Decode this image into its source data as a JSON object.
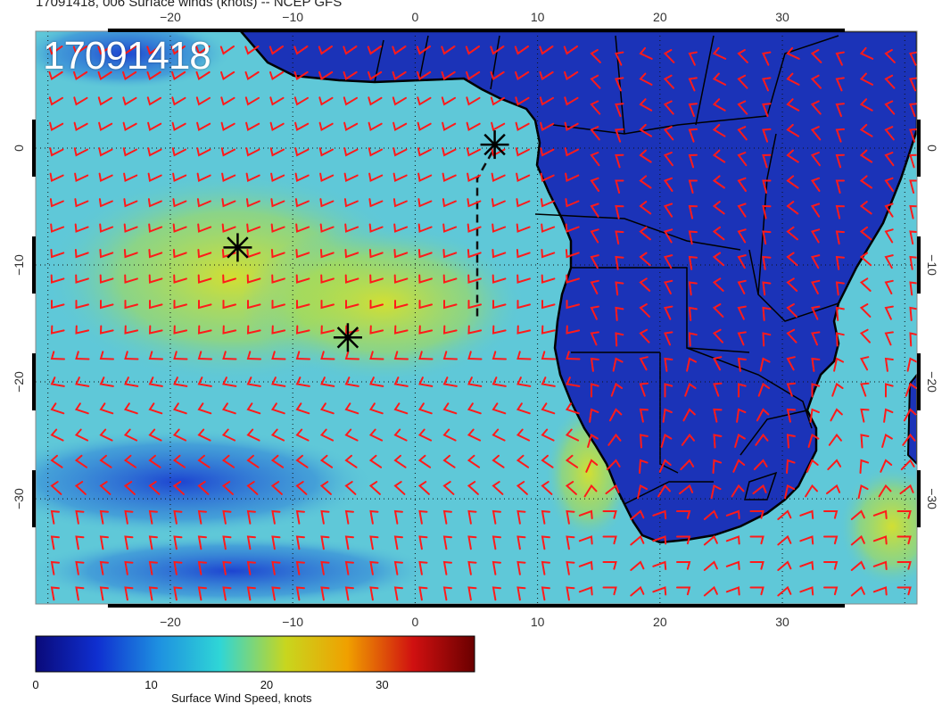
{
  "title": "17091418, 006 Surface winds (knots) -- NCEP GFS",
  "stamp": "17091418",
  "map": {
    "lon_range": [
      -31,
      41
    ],
    "lat_range": [
      -39,
      10
    ],
    "lon_ticks": [
      -20,
      -10,
      0,
      10,
      20,
      30
    ],
    "lat_ticks": [
      0,
      -10,
      -20,
      -30
    ],
    "lon_tick_labels": [
      "−20",
      "−10",
      "0",
      "10",
      "20",
      "30"
    ],
    "lat_tick_labels": [
      "0",
      "−10",
      "−20",
      "−30"
    ],
    "ocean_color": "#5fc8d8",
    "land_color": "#1b33b8",
    "barb_color": "#ff1a1a",
    "markers": [
      {
        "lon": 6.5,
        "lat": 0.3
      },
      {
        "lon": -14.5,
        "lat": -8.5
      },
      {
        "lon": -5.5,
        "lat": -16.2
      }
    ]
  },
  "colorbar": {
    "min": 0,
    "max": 38,
    "tick_values": [
      0,
      10,
      20,
      30
    ],
    "tick_labels": [
      "0",
      "10",
      "20",
      "30"
    ],
    "title": "Surface Wind Speed, knots",
    "colors": [
      "#0a0a7a",
      "#0f2fd0",
      "#1e90e0",
      "#2fd6d6",
      "#c8d61e",
      "#f0a000",
      "#d01010",
      "#6a0000"
    ]
  }
}
